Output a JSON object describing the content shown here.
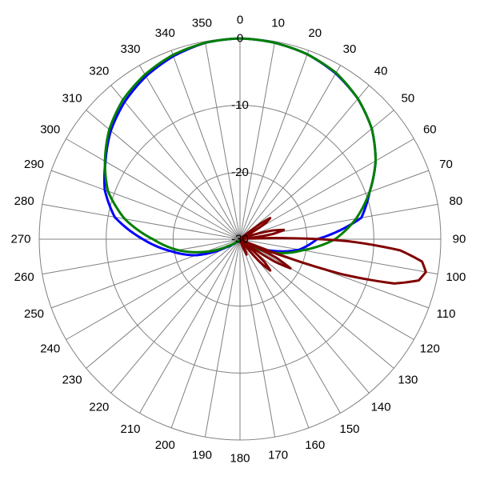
{
  "chart_data": {
    "type": "polar",
    "angle_unit": "degrees",
    "angle_zero": "top",
    "angle_direction": "clockwise",
    "angle_ticks": [
      0,
      10,
      20,
      30,
      40,
      50,
      60,
      70,
      80,
      90,
      100,
      110,
      120,
      130,
      140,
      150,
      160,
      170,
      180,
      190,
      200,
      210,
      220,
      230,
      240,
      250,
      260,
      270,
      280,
      290,
      300,
      310,
      320,
      330,
      340,
      350
    ],
    "radial_range": [
      -30,
      0
    ],
    "radial_ticks": [
      0,
      -10,
      -20,
      -30
    ],
    "radial_tick_labels": [
      "0",
      "-10",
      "-20",
      "-30"
    ],
    "grid": true,
    "grid_color": "#808080",
    "series": [
      {
        "color": "#0000ff",
        "points": [
          [
            0,
            0
          ],
          [
            10,
            -0.2
          ],
          [
            20,
            -0.6
          ],
          [
            30,
            -1.4
          ],
          [
            40,
            -2.6
          ],
          [
            50,
            -4.3
          ],
          [
            60,
            -6.6
          ],
          [
            70,
            -9.4
          ],
          [
            80,
            -11.6
          ],
          [
            90,
            -18.5
          ],
          [
            100,
            -21
          ],
          [
            110,
            -25
          ],
          [
            120,
            -28
          ],
          [
            130,
            -29.5
          ],
          [
            140,
            -30
          ],
          [
            180,
            -30
          ],
          [
            220,
            -30
          ],
          [
            230,
            -29.5
          ],
          [
            240,
            -27.5
          ],
          [
            250,
            -23
          ],
          [
            260,
            -19.6
          ],
          [
            270,
            -15.5
          ],
          [
            280,
            -11
          ],
          [
            290,
            -8.5
          ],
          [
            300,
            -6.8
          ],
          [
            310,
            -4.8
          ],
          [
            320,
            -3.2
          ],
          [
            330,
            -1.9
          ],
          [
            340,
            -0.9
          ],
          [
            350,
            -0.2
          ],
          [
            360,
            0
          ]
        ]
      },
      {
        "color": "#008000",
        "points": [
          [
            0,
            0
          ],
          [
            10,
            -0.2
          ],
          [
            20,
            -0.6
          ],
          [
            30,
            -1.3
          ],
          [
            40,
            -2.6
          ],
          [
            50,
            -4.3
          ],
          [
            60,
            -6.6
          ],
          [
            70,
            -9.4
          ],
          [
            80,
            -12.4
          ],
          [
            90,
            -15.8
          ],
          [
            100,
            -20.5
          ],
          [
            110,
            -24
          ],
          [
            120,
            -27.5
          ],
          [
            130,
            -29.5
          ],
          [
            140,
            -30
          ],
          [
            180,
            -30
          ],
          [
            220,
            -30
          ],
          [
            230,
            -29.5
          ],
          [
            240,
            -28
          ],
          [
            250,
            -24.5
          ],
          [
            260,
            -20.6
          ],
          [
            270,
            -17
          ],
          [
            280,
            -12.5
          ],
          [
            290,
            -9
          ],
          [
            300,
            -6.7
          ],
          [
            310,
            -4.5
          ],
          [
            320,
            -2.8
          ],
          [
            330,
            -1.6
          ],
          [
            340,
            -0.7
          ],
          [
            350,
            -0.2
          ],
          [
            360,
            0
          ]
        ]
      },
      {
        "color": "#800000",
        "points": [
          [
            0,
            -30
          ],
          [
            40,
            -30
          ],
          [
            50,
            -29.5
          ],
          [
            53,
            -26
          ],
          [
            55,
            -24.5
          ],
          [
            58,
            -25.5
          ],
          [
            62,
            -29.5
          ],
          [
            65,
            -30
          ],
          [
            70,
            -29.5
          ],
          [
            75,
            -25
          ],
          [
            78,
            -23.3
          ],
          [
            81,
            -25
          ],
          [
            84,
            -29.5
          ],
          [
            87,
            -28
          ],
          [
            89,
            -22
          ],
          [
            91,
            -14
          ],
          [
            94,
            -6
          ],
          [
            97,
            -2.6
          ],
          [
            100,
            -1.8
          ],
          [
            103,
            -2.6
          ],
          [
            106,
            -6
          ],
          [
            109,
            -14
          ],
          [
            111,
            -22
          ],
          [
            113,
            -28
          ],
          [
            115,
            -29.5
          ],
          [
            117,
            -24
          ],
          [
            120,
            -21.3
          ],
          [
            123,
            -24
          ],
          [
            126,
            -29.5
          ],
          [
            130,
            -29.5
          ],
          [
            133,
            -25
          ],
          [
            136,
            -23.5
          ],
          [
            139,
            -25.5
          ],
          [
            142,
            -29.5
          ],
          [
            145,
            -30
          ],
          [
            152,
            -29.5
          ],
          [
            157,
            -27.5
          ],
          [
            159,
            -28.5
          ],
          [
            162,
            -30
          ],
          [
            360,
            -30
          ]
        ]
      }
    ]
  }
}
